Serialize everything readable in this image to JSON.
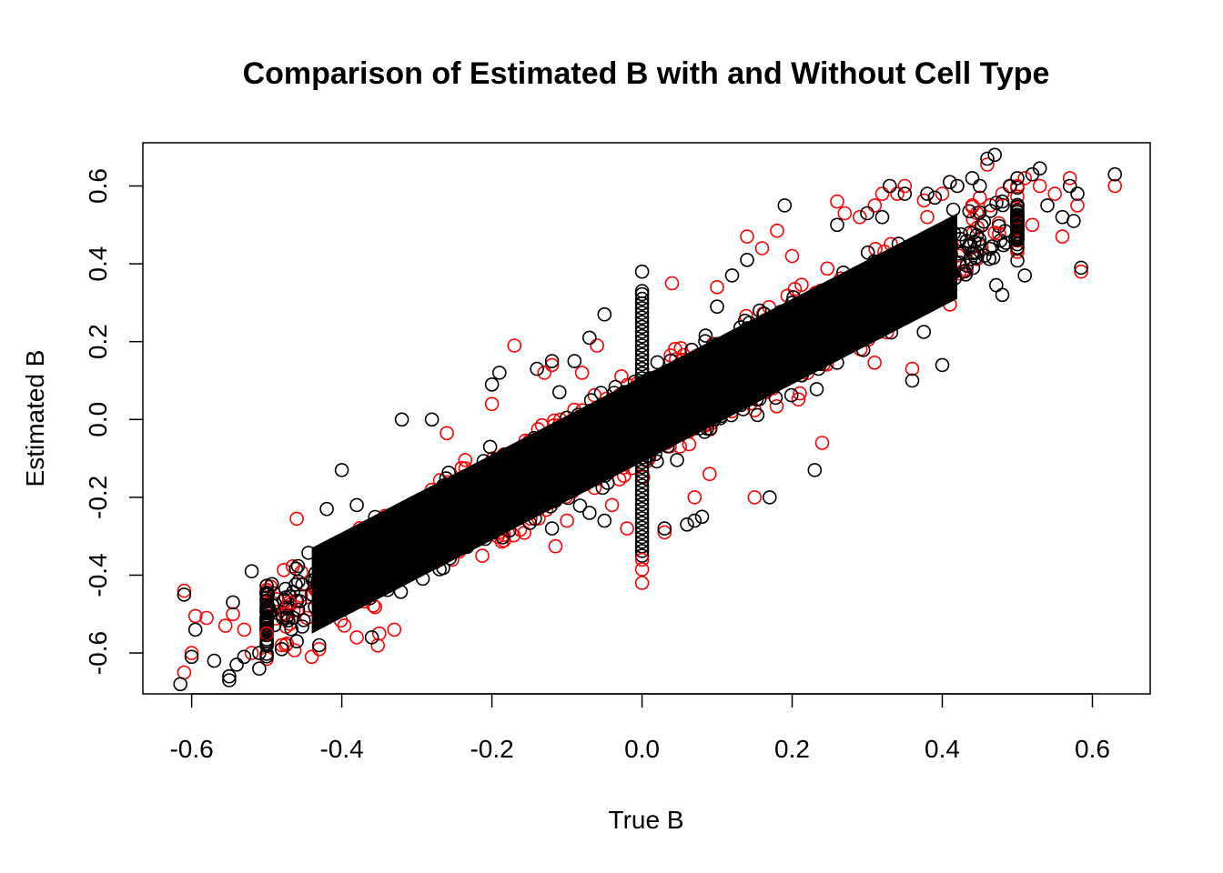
{
  "chart_data": {
    "type": "scatter",
    "title": "Comparison of Estimated B with and Without Cell Type",
    "xlabel": "True B",
    "ylabel": "Estimated B",
    "xlim": [
      -0.665,
      0.677
    ],
    "ylim": [
      -0.705,
      0.711
    ],
    "x_ticks": [
      -0.6,
      -0.4,
      -0.2,
      0.0,
      0.2,
      0.4,
      0.6
    ],
    "x_tick_labels": [
      "-0.6",
      "-0.4",
      "-0.2",
      "0.0",
      "0.2",
      "0.4",
      "0.6"
    ],
    "y_ticks": [
      -0.6,
      -0.4,
      -0.2,
      0.0,
      0.2,
      0.4,
      0.6
    ],
    "y_tick_labels": [
      "-0.6",
      "-0.4",
      "-0.2",
      "0.0",
      "0.2",
      "0.4",
      "0.6"
    ],
    "grid": false,
    "legend": "none",
    "marker": "open-circle",
    "series": [
      {
        "color": "#ff0000",
        "points": [
          [
            -0.61,
            -0.44
          ],
          [
            -0.61,
            -0.65
          ],
          [
            -0.6,
            -0.6
          ],
          [
            -0.595,
            -0.505
          ],
          [
            -0.58,
            -0.51
          ],
          [
            -0.555,
            -0.53
          ],
          [
            -0.545,
            -0.5
          ],
          [
            -0.53,
            -0.54
          ],
          [
            -0.52,
            -0.6
          ],
          [
            -0.5,
            -0.55
          ],
          [
            -0.48,
            -0.58
          ],
          [
            -0.47,
            -0.47
          ],
          [
            -0.44,
            -0.61
          ],
          [
            -0.43,
            -0.59
          ],
          [
            -0.46,
            -0.255
          ],
          [
            -0.38,
            -0.56
          ],
          [
            -0.35,
            -0.55
          ],
          [
            -0.33,
            -0.54
          ],
          [
            -0.26,
            -0.035
          ],
          [
            -0.2,
            0.04
          ],
          [
            -0.17,
            0.19
          ],
          [
            -0.13,
            0.12
          ],
          [
            -0.12,
            0.14
          ],
          [
            -0.08,
            0.12
          ],
          [
            -0.06,
            0.19
          ],
          [
            -0.1,
            -0.26
          ],
          [
            -0.04,
            -0.22
          ],
          [
            -0.02,
            -0.28
          ],
          [
            0.0,
            -0.36
          ],
          [
            0.0,
            -0.385
          ],
          [
            0.0,
            -0.42
          ],
          [
            0.03,
            -0.29
          ],
          [
            0.04,
            0.35
          ],
          [
            0.07,
            -0.2
          ],
          [
            0.09,
            -0.14
          ],
          [
            0.1,
            0.34
          ],
          [
            0.14,
            0.47
          ],
          [
            0.15,
            -0.2
          ],
          [
            0.16,
            0.44
          ],
          [
            0.18,
            0.485
          ],
          [
            0.2,
            0.42
          ],
          [
            0.24,
            -0.06
          ],
          [
            0.26,
            0.56
          ],
          [
            0.27,
            0.53
          ],
          [
            0.29,
            0.52
          ],
          [
            0.31,
            0.55
          ],
          [
            0.32,
            0.58
          ],
          [
            0.34,
            0.58
          ],
          [
            0.35,
            0.6
          ],
          [
            0.36,
            0.13
          ],
          [
            0.38,
            0.52
          ],
          [
            0.4,
            0.58
          ],
          [
            0.42,
            0.6
          ],
          [
            0.45,
            0.57
          ],
          [
            0.46,
            0.655
          ],
          [
            0.47,
            0.48
          ],
          [
            0.48,
            0.58
          ],
          [
            0.5,
            0.6
          ],
          [
            0.52,
            0.5
          ],
          [
            0.53,
            0.6
          ],
          [
            0.55,
            0.58
          ],
          [
            0.56,
            0.47
          ],
          [
            0.57,
            0.62
          ],
          [
            0.58,
            0.55
          ],
          [
            0.585,
            0.38
          ],
          [
            0.63,
            0.6
          ],
          [
            0.51,
            0.62
          ],
          [
            0.44,
            0.55
          ]
        ]
      },
      {
        "color": "#000000",
        "points": [
          [
            -0.615,
            -0.68
          ],
          [
            -0.61,
            -0.45
          ],
          [
            -0.6,
            -0.61
          ],
          [
            -0.595,
            -0.54
          ],
          [
            -0.57,
            -0.62
          ],
          [
            -0.55,
            -0.67
          ],
          [
            -0.55,
            -0.66
          ],
          [
            -0.54,
            -0.63
          ],
          [
            -0.545,
            -0.47
          ],
          [
            -0.53,
            -0.61
          ],
          [
            -0.52,
            -0.39
          ],
          [
            -0.51,
            -0.6
          ],
          [
            -0.51,
            -0.64
          ],
          [
            -0.5,
            -0.58
          ],
          [
            -0.48,
            -0.59
          ],
          [
            -0.46,
            -0.57
          ],
          [
            -0.43,
            -0.58
          ],
          [
            -0.42,
            -0.23
          ],
          [
            -0.4,
            -0.13
          ],
          [
            -0.38,
            -0.22
          ],
          [
            -0.36,
            -0.56
          ],
          [
            -0.32,
            0.0
          ],
          [
            -0.28,
            0.0
          ],
          [
            -0.2,
            0.09
          ],
          [
            -0.19,
            0.12
          ],
          [
            -0.14,
            0.13
          ],
          [
            -0.12,
            0.15
          ],
          [
            -0.11,
            0.07
          ],
          [
            -0.09,
            0.15
          ],
          [
            -0.07,
            0.21
          ],
          [
            -0.05,
            0.27
          ],
          [
            -0.12,
            -0.28
          ],
          [
            -0.07,
            -0.24
          ],
          [
            -0.05,
            -0.26
          ],
          [
            0.0,
            0.38
          ],
          [
            0.0,
            0.33
          ],
          [
            0.03,
            -0.28
          ],
          [
            0.06,
            -0.27
          ],
          [
            0.07,
            -0.26
          ],
          [
            0.08,
            -0.25
          ],
          [
            0.1,
            0.29
          ],
          [
            0.12,
            0.37
          ],
          [
            0.14,
            0.41
          ],
          [
            0.17,
            -0.2
          ],
          [
            0.19,
            0.55
          ],
          [
            0.23,
            -0.13
          ],
          [
            0.26,
            0.5
          ],
          [
            0.3,
            0.53
          ],
          [
            0.32,
            0.52
          ],
          [
            0.33,
            0.6
          ],
          [
            0.35,
            0.58
          ],
          [
            0.36,
            0.1
          ],
          [
            0.38,
            0.58
          ],
          [
            0.39,
            0.57
          ],
          [
            0.4,
            0.14
          ],
          [
            0.41,
            0.61
          ],
          [
            0.42,
            0.6
          ],
          [
            0.44,
            0.62
          ],
          [
            0.45,
            0.6
          ],
          [
            0.46,
            0.67
          ],
          [
            0.47,
            0.68
          ],
          [
            0.49,
            0.6
          ],
          [
            0.5,
            0.62
          ],
          [
            0.51,
            0.37
          ],
          [
            0.52,
            0.63
          ],
          [
            0.53,
            0.645
          ],
          [
            0.54,
            0.55
          ],
          [
            0.56,
            0.52
          ],
          [
            0.57,
            0.6
          ],
          [
            0.575,
            0.51
          ],
          [
            0.58,
            0.58
          ],
          [
            0.585,
            0.39
          ],
          [
            0.63,
            0.63
          ],
          [
            0.48,
            0.32
          ],
          [
            0.48,
            0.56
          ]
        ]
      }
    ],
    "dense_band": {
      "x_range": [
        -0.5,
        0.5
      ],
      "slope": 1.0,
      "intercept": 0.0,
      "half_width": 0.16,
      "zero_column": {
        "x": 0.0,
        "y_range": [
          -0.35,
          0.33
        ]
      }
    }
  }
}
